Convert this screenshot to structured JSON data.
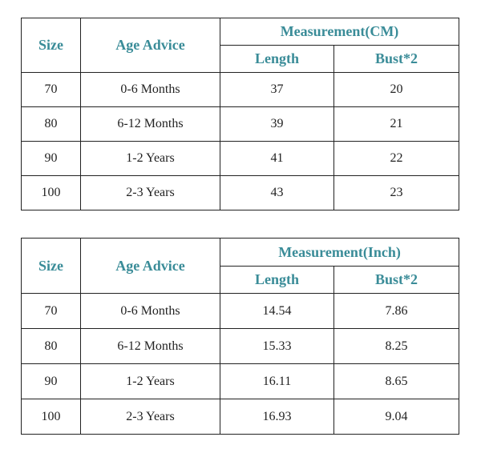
{
  "tables": [
    {
      "headers": {
        "size": "Size",
        "age_advice": "Age Advice",
        "measurement": "Measurement(CM)",
        "length": "Length",
        "bust": "Bust*2"
      },
      "rows": [
        {
          "size": "70",
          "age": "0-6 Months",
          "length": "37",
          "bust": "20"
        },
        {
          "size": "80",
          "age": "6-12 Months",
          "length": "39",
          "bust": "21"
        },
        {
          "size": "90",
          "age": "1-2 Years",
          "length": "41",
          "bust": "22"
        },
        {
          "size": "100",
          "age": "2-3 Years",
          "length": "43",
          "bust": "23"
        }
      ]
    },
    {
      "headers": {
        "size": "Size",
        "age_advice": "Age Advice",
        "measurement": "Measurement(Inch)",
        "length": "Length",
        "bust": "Bust*2"
      },
      "rows": [
        {
          "size": "70",
          "age": "0-6 Months",
          "length": "14.54",
          "bust": "7.86"
        },
        {
          "size": "80",
          "age": "6-12 Months",
          "length": "15.33",
          "bust": "8.25"
        },
        {
          "size": "90",
          "age": "1-2 Years",
          "length": "16.11",
          "bust": "8.65"
        },
        {
          "size": "100",
          "age": "2-3 Years",
          "length": "16.93",
          "bust": "9.04"
        }
      ]
    }
  ],
  "colors": {
    "header_text": "#3a8c98",
    "body_text": "#222222",
    "border": "#222222"
  }
}
